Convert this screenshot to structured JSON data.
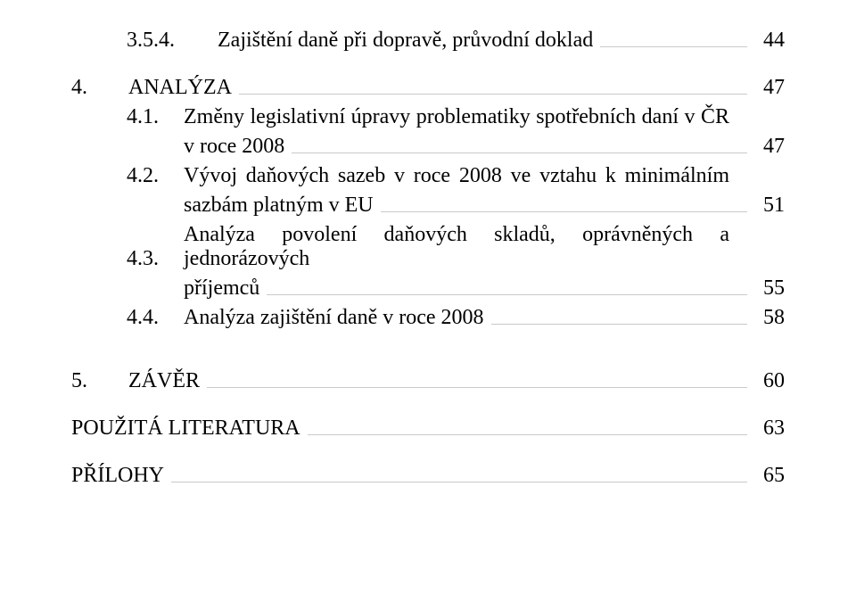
{
  "colors": {
    "text": "#000000",
    "leader": "#c9c9c9",
    "background": "#ffffff"
  },
  "typography": {
    "font_family": "Times New Roman",
    "body_size_pt": 18
  },
  "toc": {
    "r1": {
      "num": "3.5.4.",
      "label": "Zajištění daně při dopravě, průvodní doklad",
      "page": "44"
    },
    "r2": {
      "num": "4.",
      "label": "ANALÝZA",
      "page": "47"
    },
    "r3": {
      "num": "4.1.",
      "line1": "Změny legislativní úpravy problematiky spotřebních daní v ČR",
      "cont": "v roce 2008",
      "page": "47"
    },
    "r4": {
      "num": "4.2.",
      "line1": "Vývoj daňových sazeb v roce 2008 ve vztahu k minimálním",
      "cont": "sazbám platným v EU",
      "page": "51"
    },
    "r5": {
      "num": "4.3.",
      "line1": "Analýza povolení daňových skladů, oprávněných a jednorázových",
      "cont": "příjemců",
      "page": "55"
    },
    "r6": {
      "num": "4.4.",
      "label": "Analýza zajištění daně v roce 2008",
      "page": "58"
    },
    "r7": {
      "num": "5.",
      "label": "ZÁVĚR",
      "page": "60"
    },
    "r8": {
      "label": "POUŽITÁ LITERATURA",
      "page": "63"
    },
    "r9": {
      "label": "PŘÍLOHY",
      "page": "65"
    }
  }
}
